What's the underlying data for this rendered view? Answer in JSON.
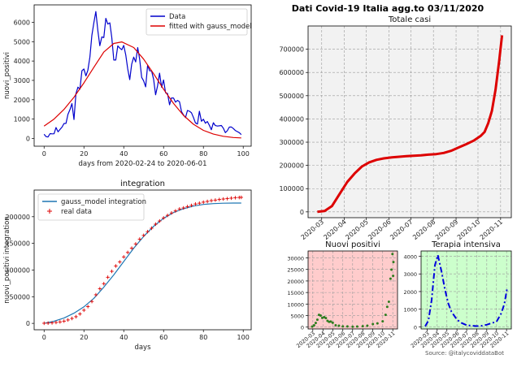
{
  "main_title": "Dati Covid-19 Italia agg.to 03/11/2020",
  "source": "Source: @italycoviddataBot",
  "chart_data": [
    {
      "id": "gauss",
      "type": "line",
      "title": "",
      "xlabel": "days from 2020-02-24 to 2020-06-01",
      "ylabel": "nuovi_positivi",
      "xlim": [
        -5,
        104
      ],
      "ylim": [
        -400,
        6900
      ],
      "xticks": [
        0,
        20,
        40,
        60,
        80,
        100
      ],
      "yticks": [
        0,
        1000,
        2000,
        3000,
        4000,
        5000,
        6000
      ],
      "legend": "top-right",
      "series": [
        {
          "name": "Data",
          "color": "#0000cc",
          "x": [
            0,
            1,
            2,
            3,
            4,
            5,
            6,
            7,
            8,
            9,
            10,
            11,
            12,
            13,
            14,
            15,
            16,
            17,
            18,
            19,
            20,
            21,
            22,
            23,
            24,
            25,
            26,
            27,
            28,
            29,
            30,
            31,
            32,
            33,
            34,
            35,
            36,
            37,
            38,
            39,
            40,
            41,
            42,
            43,
            44,
            45,
            46,
            47,
            48,
            49,
            50,
            51,
            52,
            53,
            54,
            55,
            56,
            57,
            58,
            59,
            60,
            61,
            62,
            63,
            64,
            65,
            66,
            67,
            68,
            69,
            70,
            71,
            72,
            73,
            74,
            75,
            76,
            77,
            78,
            79,
            80,
            81,
            82,
            83,
            84,
            85,
            86,
            87,
            88,
            89,
            90,
            91,
            92,
            93,
            94,
            95,
            96,
            97,
            98,
            99
          ],
          "y": [
            221,
            93,
            78,
            250,
            238,
            240,
            566,
            342,
            466,
            587,
            769,
            778,
            1247,
            1492,
            1797,
            977,
            2313,
            2651,
            2547,
            3497,
            3590,
            3233,
            3526,
            4207,
            5322,
            5986,
            6557,
            5560,
            4789,
            5249,
            5210,
            6203,
            5909,
            5974,
            5217,
            4050,
            4053,
            4782,
            4668,
            4585,
            4805,
            4316,
            3599,
            3039,
            3836,
            4204,
            3951,
            4694,
            4092,
            3153,
            2972,
            2667,
            3786,
            3493,
            3491,
            3047,
            2256,
            2729,
            3370,
            2646,
            3021,
            2357,
            2324,
            1739,
            2091,
            2086,
            1872,
            1965,
            1900,
            1389,
            1221,
            1075,
            1444,
            1402,
            1327,
            1083,
            802,
            744,
            1402,
            888,
            992,
            789,
            875,
            675,
            451,
            813,
            665,
            642,
            652,
            669,
            531,
            300,
            397,
            584,
            593,
            516,
            416,
            355,
            300,
            200
          ]
        },
        {
          "name": "fitted with gauss_model",
          "color": "#dd0000",
          "x": [
            0,
            5,
            10,
            15,
            20,
            25,
            30,
            35,
            39,
            45,
            50,
            55,
            60,
            65,
            70,
            75,
            80,
            85,
            90,
            95,
            99
          ],
          "y": [
            636,
            1002,
            1500,
            2128,
            2869,
            3676,
            4464,
            4908,
            4987,
            4696,
            4099,
            3343,
            2547,
            1806,
            1194,
            734,
            420,
            224,
            111,
            51,
            27
          ]
        }
      ]
    },
    {
      "id": "integration",
      "type": "line",
      "title": "integration",
      "xlabel": "days",
      "ylabel": "nuovi_positivi integration",
      "xlim": [
        -5,
        104
      ],
      "ylim": [
        -12000,
        250000
      ],
      "xticks": [
        0,
        20,
        40,
        60,
        80,
        100
      ],
      "yticks": [
        0,
        50000,
        100000,
        150000,
        200000
      ],
      "legend": "top-left",
      "series": [
        {
          "name": "gauss_model integration",
          "color": "#1f77b4",
          "x": [
            0,
            5,
            10,
            15,
            20,
            25,
            30,
            35,
            40,
            45,
            50,
            55,
            60,
            65,
            70,
            75,
            80,
            85,
            90,
            95,
            99
          ],
          "y": [
            0,
            4000,
            10000,
            19000,
            31000,
            47000,
            68000,
            91000,
            116000,
            141000,
            163000,
            182000,
            197000,
            208000,
            215000,
            220000,
            223000,
            224500,
            225300,
            225600,
            225700
          ]
        },
        {
          "name": "real data",
          "color": "#dd0000",
          "x": [
            0,
            2,
            4,
            6,
            8,
            10,
            12,
            14,
            16,
            18,
            20,
            22,
            24,
            26,
            28,
            30,
            32,
            34,
            36,
            38,
            40,
            42,
            44,
            46,
            48,
            50,
            52,
            54,
            56,
            58,
            60,
            62,
            64,
            66,
            68,
            70,
            72,
            74,
            76,
            78,
            80,
            82,
            84,
            86,
            88,
            90,
            92,
            94,
            96,
            98,
            99
          ],
          "y": [
            221,
            400,
            900,
            1700,
            2700,
            4200,
            6400,
            9200,
            12500,
            17700,
            24700,
            31500,
            41000,
            53600,
            65000,
            74400,
            86500,
            97600,
            107600,
            115200,
            124600,
            133000,
            141000,
            149000,
            158000,
            165000,
            172000,
            178400,
            186000,
            192000,
            197700,
            202500,
            207000,
            210900,
            214500,
            216500,
            219000,
            221200,
            223900,
            225400,
            227300,
            228700,
            230200,
            231200,
            232300,
            233200,
            233900,
            234800,
            235700,
            236100,
            236300
          ]
        }
      ]
    },
    {
      "id": "totale-casi",
      "type": "line",
      "title": "Totale casi",
      "xlabel": "",
      "ylabel": "",
      "ylim": [
        -25000,
        800000
      ],
      "yticks": [
        0,
        100000,
        200000,
        300000,
        400000,
        500000,
        600000,
        700000
      ],
      "xticks": [
        "2020-03",
        "2020-04",
        "2020-05",
        "2020-06",
        "2020-07",
        "2020-08",
        "2020-09",
        "2020-10",
        "2020-11"
      ],
      "grid": true,
      "series": [
        {
          "name": "",
          "color": "#dd0000",
          "x": [
            "2020-02-24",
            "2020-03-05",
            "2020-03-15",
            "2020-03-25",
            "2020-04-05",
            "2020-04-15",
            "2020-04-25",
            "2020-05-05",
            "2020-05-15",
            "2020-05-25",
            "2020-06-05",
            "2020-06-15",
            "2020-06-25",
            "2020-07-05",
            "2020-07-15",
            "2020-07-25",
            "2020-08-05",
            "2020-08-15",
            "2020-08-25",
            "2020-09-05",
            "2020-09-15",
            "2020-09-25",
            "2020-10-05",
            "2020-10-10",
            "2020-10-15",
            "2020-10-20",
            "2020-10-25",
            "2020-10-30",
            "2020-11-03"
          ],
          "y": [
            229,
            3858,
            24747,
            74386,
            128948,
            165155,
            195351,
            213013,
            223885,
            230158,
            234531,
            237290,
            239706,
            241611,
            243506,
            246118,
            248803,
            253438,
            262540,
            277634,
            291442,
            306235,
            327586,
            343770,
            381602,
            434449,
            525782,
            647674,
            759829
          ]
        }
      ]
    },
    {
      "id": "nuovi-positivi",
      "type": "scatter",
      "title": "Nuovi positivi",
      "xlabel": "",
      "ylabel": "",
      "ylim": [
        -800,
        33000
      ],
      "yticks": [
        0,
        5000,
        10000,
        15000,
        20000,
        25000,
        30000
      ],
      "xticks": [
        "2020-03",
        "2020-04",
        "2020-05",
        "2020-06",
        "2020-07",
        "2020-08",
        "2020-09",
        "2020-10",
        "2020-11"
      ],
      "background": "#ffcccc",
      "grid": true,
      "series": [
        {
          "name": "",
          "color": "#2e7d1f",
          "x": [
            "2020-02-28",
            "2020-03-05",
            "2020-03-10",
            "2020-03-15",
            "2020-03-20",
            "2020-03-25",
            "2020-03-30",
            "2020-04-05",
            "2020-04-10",
            "2020-04-15",
            "2020-04-20",
            "2020-04-25",
            "2020-05-01",
            "2020-05-10",
            "2020-05-20",
            "2020-06-01",
            "2020-06-15",
            "2020-07-01",
            "2020-07-15",
            "2020-08-01",
            "2020-08-15",
            "2020-09-01",
            "2020-09-15",
            "2020-10-01",
            "2020-10-10",
            "2020-10-15",
            "2020-10-20",
            "2020-10-25",
            "2020-10-28",
            "2020-10-31",
            "2020-11-02",
            "2020-11-03"
          ],
          "y": [
            200,
            800,
            1800,
            3200,
            5300,
            5000,
            4000,
            4300,
            3900,
            2700,
            2300,
            2400,
            1900,
            800,
            600,
            300,
            300,
            180,
            250,
            380,
            630,
            1300,
            1600,
            2500,
            5300,
            8800,
            11000,
            21000,
            24900,
            31700,
            22200,
            28200
          ]
        }
      ]
    },
    {
      "id": "terapia-intensiva",
      "type": "line",
      "title": "Terapia intensiva",
      "xlabel": "",
      "ylabel": "",
      "ylim": [
        -120,
        4300
      ],
      "yticks": [
        0,
        1000,
        2000,
        3000,
        4000
      ],
      "xticks": [
        "2020-03",
        "2020-04",
        "2020-05",
        "2020-06",
        "2020-07",
        "2020-08",
        "2020-09",
        "2020-10",
        "2020-11"
      ],
      "background": "#ccffcc",
      "grid": true,
      "series": [
        {
          "name": "",
          "color": "#0000dd",
          "x": [
            "2020-02-24",
            "2020-03-05",
            "2020-03-15",
            "2020-03-25",
            "2020-04-03",
            "2020-04-15",
            "2020-04-25",
            "2020-05-05",
            "2020-05-15",
            "2020-06-01",
            "2020-06-15",
            "2020-07-01",
            "2020-07-15",
            "2020-08-01",
            "2020-08-15",
            "2020-09-01",
            "2020-09-15",
            "2020-10-01",
            "2020-10-15",
            "2020-10-25",
            "2020-11-03"
          ],
          "y": [
            27,
            351,
            1518,
            3489,
            4068,
            3079,
            2102,
            1333,
            855,
            408,
            220,
            93,
            65,
            41,
            56,
            120,
            207,
            291,
            750,
            1284,
            2225
          ]
        }
      ]
    }
  ]
}
